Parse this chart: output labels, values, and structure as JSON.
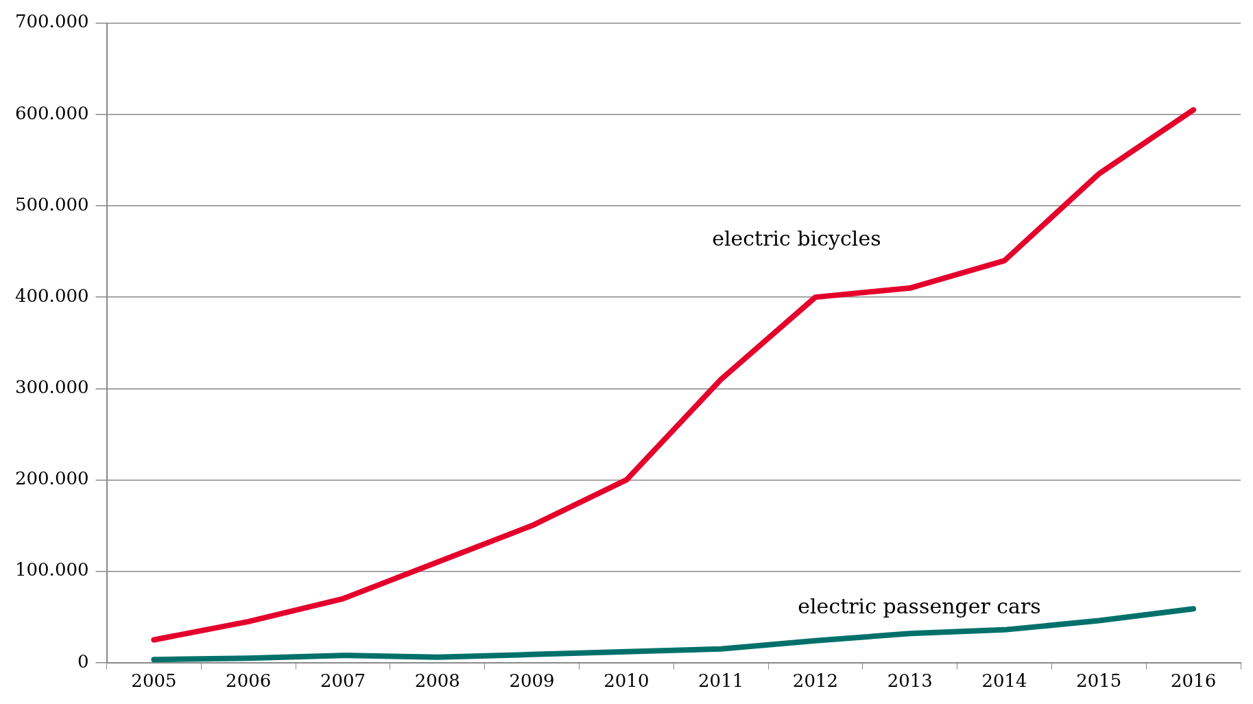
{
  "chart_data": {
    "type": "line",
    "categories": [
      "2005",
      "2006",
      "2007",
      "2008",
      "2009",
      "2010",
      "2011",
      "2012",
      "2013",
      "2014",
      "2015",
      "2016"
    ],
    "series": [
      {
        "name": "electric bicycles",
        "color": "#e4002b",
        "values": [
          25000,
          45000,
          70000,
          110000,
          150000,
          200000,
          310000,
          400000,
          410000,
          440000,
          535000,
          605000
        ]
      },
      {
        "name": "electric passenger cars",
        "color": "#00706b",
        "values": [
          3500,
          5000,
          8000,
          6000,
          9000,
          12000,
          15000,
          24000,
          32000,
          36000,
          46000,
          59000
        ]
      }
    ],
    "ylim": [
      0,
      700000
    ],
    "yticks": [
      {
        "value": 0,
        "label": "0"
      },
      {
        "value": 100000,
        "label": "100.000"
      },
      {
        "value": 200000,
        "label": "200.000"
      },
      {
        "value": 300000,
        "label": "300.000"
      },
      {
        "value": 400000,
        "label": "400.000"
      },
      {
        "value": 500000,
        "label": "500.000"
      },
      {
        "value": 600000,
        "label": "600.000"
      },
      {
        "value": 700000,
        "label": "700.000"
      }
    ],
    "grid": "y",
    "legend": false,
    "marker": "none",
    "line_style": "solid"
  }
}
